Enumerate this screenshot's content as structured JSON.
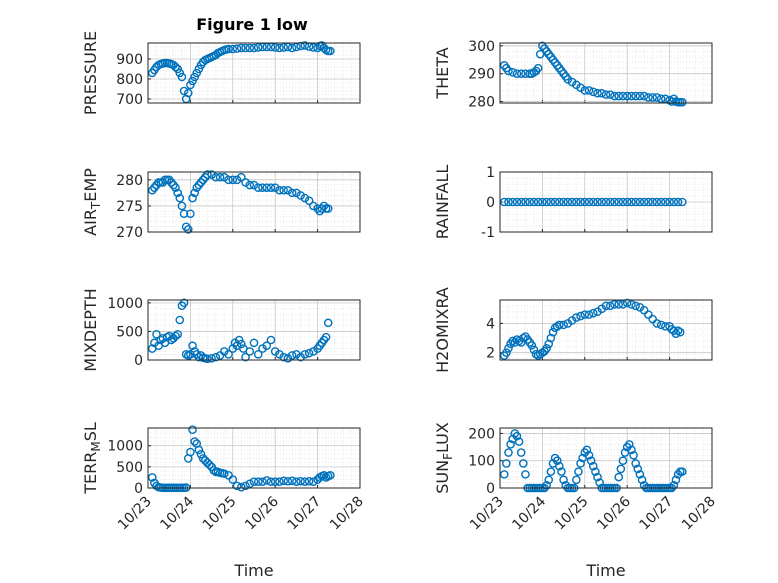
{
  "figure_title": "Figure 1 low",
  "colors": {
    "marker": "#0072BD",
    "axis": "#262626",
    "grid": "#c8c8c8",
    "minor_grid": "#e2e2e2",
    "background": "#ffffff"
  },
  "x_ticks": [
    "10/23",
    "10/24",
    "10/25",
    "10/26",
    "10/27",
    "10/28"
  ],
  "x_label": "Time",
  "chart_data": [
    {
      "type": "scatter",
      "ylabel": "PRESSURE",
      "title": "Figure 1 low",
      "xlim": [
        0,
        5
      ],
      "ylim": [
        680,
        980
      ],
      "yticks": [
        700,
        800,
        900
      ],
      "grid": "on",
      "x": [
        0.1,
        0.15,
        0.2,
        0.25,
        0.3,
        0.35,
        0.4,
        0.45,
        0.5,
        0.55,
        0.6,
        0.65,
        0.7,
        0.75,
        0.8,
        0.85,
        0.9,
        0.95,
        1.0,
        1.05,
        1.1,
        1.15,
        1.2,
        1.25,
        1.3,
        1.35,
        1.4,
        1.45,
        1.5,
        1.55,
        1.6,
        1.65,
        1.7,
        1.75,
        1.8,
        1.85,
        1.9,
        2.0,
        2.1,
        2.2,
        2.3,
        2.4,
        2.5,
        2.6,
        2.7,
        2.8,
        2.9,
        3.0,
        3.1,
        3.2,
        3.3,
        3.4,
        3.5,
        3.6,
        3.7,
        3.8,
        3.9,
        4.0,
        4.05,
        4.1,
        4.15,
        4.2,
        4.25,
        4.3
      ],
      "y": [
        830,
        845,
        860,
        870,
        875,
        878,
        880,
        880,
        878,
        875,
        870,
        860,
        850,
        830,
        810,
        740,
        700,
        730,
        770,
        790,
        810,
        830,
        850,
        870,
        885,
        895,
        900,
        905,
        910,
        915,
        920,
        930,
        935,
        940,
        945,
        948,
        950,
        950,
        952,
        955,
        955,
        955,
        955,
        958,
        960,
        960,
        960,
        958,
        955,
        958,
        960,
        955,
        960,
        965,
        968,
        962,
        958,
        955,
        965,
        968,
        955,
        945,
        940,
        940
      ]
    },
    {
      "type": "scatter",
      "ylabel": "THETA",
      "xlim": [
        0,
        5
      ],
      "ylim": [
        279.5,
        301
      ],
      "yticks": [
        280,
        290,
        300
      ],
      "grid": "on",
      "x": [
        0.1,
        0.15,
        0.2,
        0.3,
        0.4,
        0.5,
        0.6,
        0.7,
        0.75,
        0.8,
        0.85,
        0.9,
        0.95,
        1.0,
        1.05,
        1.1,
        1.15,
        1.2,
        1.25,
        1.3,
        1.35,
        1.4,
        1.45,
        1.5,
        1.55,
        1.6,
        1.7,
        1.8,
        1.9,
        2.0,
        2.1,
        2.2,
        2.3,
        2.4,
        2.5,
        2.6,
        2.7,
        2.8,
        2.9,
        3.0,
        3.1,
        3.2,
        3.3,
        3.4,
        3.5,
        3.6,
        3.7,
        3.8,
        3.9,
        4.0,
        4.05,
        4.1,
        4.15,
        4.2,
        4.25,
        4.3
      ],
      "y": [
        293,
        292,
        291,
        290.5,
        290,
        290,
        290,
        290,
        290,
        290.5,
        291,
        292,
        297,
        300,
        299,
        298,
        297,
        296,
        295,
        294,
        293,
        292,
        291,
        290,
        289,
        288,
        287,
        286,
        285,
        284,
        284,
        283.5,
        283,
        283,
        282.5,
        282.5,
        282,
        282,
        282,
        282,
        282,
        282,
        282,
        282,
        281.5,
        281.5,
        281.5,
        281,
        281,
        280.5,
        280,
        281,
        280,
        279.8,
        279.8,
        279.8
      ]
    },
    {
      "type": "scatter",
      "ylabel": "AIR_TEMP",
      "xlim": [
        0,
        5
      ],
      "ylim": [
        270,
        281.5
      ],
      "yticks": [
        270,
        275,
        280
      ],
      "grid": "on",
      "x": [
        0.1,
        0.15,
        0.2,
        0.25,
        0.3,
        0.35,
        0.4,
        0.45,
        0.5,
        0.55,
        0.6,
        0.65,
        0.7,
        0.75,
        0.8,
        0.85,
        0.9,
        0.95,
        1.0,
        1.05,
        1.1,
        1.15,
        1.2,
        1.25,
        1.3,
        1.35,
        1.4,
        1.5,
        1.6,
        1.7,
        1.8,
        1.9,
        2.0,
        2.1,
        2.2,
        2.3,
        2.4,
        2.5,
        2.6,
        2.7,
        2.8,
        2.9,
        3.0,
        3.1,
        3.2,
        3.3,
        3.4,
        3.5,
        3.6,
        3.7,
        3.8,
        3.9,
        4.0,
        4.05,
        4.1,
        4.15,
        4.2,
        4.25
      ],
      "y": [
        278,
        278.5,
        279,
        279.5,
        279.5,
        279.5,
        280,
        280,
        280,
        279.5,
        279,
        278.5,
        277.5,
        276.5,
        275,
        273.5,
        271,
        270.5,
        273.5,
        276.5,
        277.5,
        278.5,
        279,
        279.5,
        280,
        280.5,
        281,
        281,
        280.5,
        280.5,
        280.5,
        280,
        280,
        280,
        280.5,
        279.5,
        279,
        279,
        278.5,
        278.5,
        278.5,
        278.5,
        278.5,
        278,
        278,
        278,
        277.5,
        277.5,
        277,
        276.5,
        276,
        275,
        274.5,
        274,
        274.5,
        275,
        274.5,
        274.5
      ]
    },
    {
      "type": "scatter",
      "ylabel": "RAINFALL",
      "xlim": [
        0,
        5
      ],
      "ylim": [
        -1,
        1
      ],
      "yticks": [
        -1,
        0,
        1
      ],
      "grid": "on",
      "x": [
        0.1,
        0.2,
        0.3,
        0.4,
        0.5,
        0.6,
        0.7,
        0.8,
        0.9,
        1.0,
        1.1,
        1.2,
        1.3,
        1.4,
        1.5,
        1.6,
        1.7,
        1.8,
        1.9,
        2.0,
        2.1,
        2.2,
        2.3,
        2.4,
        2.5,
        2.6,
        2.7,
        2.8,
        2.9,
        3.0,
        3.1,
        3.2,
        3.3,
        3.4,
        3.5,
        3.6,
        3.7,
        3.8,
        3.9,
        4.0,
        4.1,
        4.2,
        4.3
      ],
      "y": [
        0,
        0,
        0,
        0,
        0,
        0,
        0,
        0,
        0,
        0,
        0,
        0,
        0,
        0,
        0,
        0,
        0,
        0,
        0,
        0,
        0,
        0,
        0,
        0,
        0,
        0,
        0,
        0,
        0,
        0,
        0,
        0,
        0,
        0,
        0,
        0,
        0,
        0,
        0,
        0,
        0,
        0,
        0
      ]
    },
    {
      "type": "scatter",
      "ylabel": "MIXDEPTH",
      "xlim": [
        0,
        5
      ],
      "ylim": [
        0,
        1050
      ],
      "yticks": [
        0,
        500,
        1000
      ],
      "grid": "on",
      "x": [
        0.1,
        0.15,
        0.2,
        0.25,
        0.3,
        0.35,
        0.4,
        0.45,
        0.5,
        0.55,
        0.6,
        0.65,
        0.7,
        0.75,
        0.8,
        0.85,
        0.9,
        0.95,
        1.0,
        1.05,
        1.1,
        1.15,
        1.2,
        1.25,
        1.3,
        1.35,
        1.4,
        1.5,
        1.6,
        1.7,
        1.8,
        1.9,
        2.0,
        2.05,
        2.1,
        2.15,
        2.2,
        2.25,
        2.3,
        2.4,
        2.5,
        2.6,
        2.7,
        2.8,
        2.9,
        3.0,
        3.1,
        3.2,
        3.3,
        3.4,
        3.5,
        3.6,
        3.7,
        3.8,
        3.9,
        4.0,
        4.05,
        4.1,
        4.15,
        4.2,
        4.25
      ],
      "y": [
        200,
        300,
        450,
        250,
        350,
        380,
        300,
        400,
        420,
        350,
        380,
        420,
        450,
        700,
        950,
        1000,
        100,
        80,
        100,
        250,
        150,
        100,
        50,
        80,
        40,
        30,
        20,
        30,
        50,
        80,
        150,
        100,
        200,
        300,
        250,
        350,
        280,
        200,
        50,
        150,
        300,
        100,
        200,
        250,
        350,
        150,
        100,
        50,
        30,
        80,
        100,
        50,
        100,
        120,
        150,
        200,
        250,
        300,
        350,
        400,
        650
      ]
    },
    {
      "type": "scatter",
      "ylabel": "H2OMIXRA",
      "xlim": [
        0,
        5
      ],
      "ylim": [
        1.5,
        5.6
      ],
      "yticks": [
        2,
        4
      ],
      "grid": "on",
      "x": [
        0.1,
        0.15,
        0.2,
        0.25,
        0.3,
        0.35,
        0.4,
        0.45,
        0.5,
        0.55,
        0.6,
        0.65,
        0.7,
        0.75,
        0.8,
        0.85,
        0.9,
        0.95,
        1.0,
        1.05,
        1.1,
        1.15,
        1.2,
        1.25,
        1.3,
        1.35,
        1.4,
        1.5,
        1.6,
        1.7,
        1.8,
        1.9,
        2.0,
        2.1,
        2.2,
        2.3,
        2.4,
        2.5,
        2.6,
        2.7,
        2.8,
        2.9,
        3.0,
        3.1,
        3.2,
        3.3,
        3.4,
        3.5,
        3.6,
        3.7,
        3.8,
        3.9,
        4.0,
        4.05,
        4.1,
        4.15,
        4.2,
        4.25
      ],
      "y": [
        1.8,
        2.0,
        2.3,
        2.6,
        2.8,
        2.7,
        2.9,
        2.8,
        2.7,
        3.0,
        3.1,
        2.9,
        2.7,
        2.5,
        2.2,
        1.9,
        1.8,
        1.9,
        2.0,
        2.1,
        2.3,
        2.6,
        3.0,
        3.4,
        3.7,
        3.8,
        3.9,
        3.9,
        4.0,
        4.2,
        4.4,
        4.5,
        4.6,
        4.6,
        4.7,
        4.8,
        5.0,
        5.2,
        5.2,
        5.3,
        5.3,
        5.3,
        5.4,
        5.3,
        5.2,
        5.1,
        4.9,
        4.6,
        4.3,
        4.0,
        3.9,
        3.8,
        3.8,
        3.6,
        3.5,
        3.3,
        3.5,
        3.4
      ]
    },
    {
      "type": "scatter",
      "ylabel": "TERR_MSL",
      "xlim": [
        0,
        5
      ],
      "ylim": [
        0,
        1420
      ],
      "yticks": [
        0,
        500,
        1000
      ],
      "grid": "on",
      "x": [
        0.1,
        0.15,
        0.2,
        0.25,
        0.3,
        0.35,
        0.4,
        0.45,
        0.5,
        0.55,
        0.6,
        0.65,
        0.7,
        0.75,
        0.8,
        0.85,
        0.9,
        0.95,
        1.0,
        1.05,
        1.1,
        1.15,
        1.2,
        1.25,
        1.3,
        1.35,
        1.4,
        1.45,
        1.5,
        1.55,
        1.6,
        1.65,
        1.7,
        1.75,
        1.8,
        1.9,
        2.0,
        2.1,
        2.2,
        2.3,
        2.4,
        2.5,
        2.6,
        2.7,
        2.8,
        2.9,
        3.0,
        3.1,
        3.2,
        3.3,
        3.4,
        3.5,
        3.6,
        3.7,
        3.8,
        3.9,
        4.0,
        4.05,
        4.1,
        4.15,
        4.2,
        4.25,
        4.3
      ],
      "y": [
        250,
        120,
        50,
        20,
        10,
        5,
        5,
        5,
        5,
        5,
        5,
        5,
        5,
        5,
        5,
        5,
        10,
        700,
        850,
        1380,
        1100,
        1050,
        900,
        800,
        700,
        650,
        600,
        550,
        500,
        420,
        380,
        380,
        360,
        350,
        340,
        300,
        200,
        50,
        20,
        50,
        100,
        150,
        150,
        150,
        180,
        150,
        150,
        150,
        170,
        160,
        170,
        150,
        160,
        150,
        160,
        150,
        200,
        250,
        280,
        300,
        250,
        280,
        300
      ]
    },
    {
      "type": "scatter",
      "ylabel": "SUN_FLUX",
      "xlim": [
        0,
        5
      ],
      "ylim": [
        0,
        220
      ],
      "yticks": [
        0,
        100,
        200
      ],
      "grid": "on",
      "x": [
        0.1,
        0.15,
        0.2,
        0.25,
        0.3,
        0.35,
        0.4,
        0.45,
        0.5,
        0.55,
        0.6,
        0.65,
        0.7,
        0.75,
        0.8,
        0.85,
        0.9,
        0.95,
        1.0,
        1.05,
        1.1,
        1.15,
        1.2,
        1.25,
        1.3,
        1.35,
        1.4,
        1.45,
        1.5,
        1.55,
        1.6,
        1.65,
        1.7,
        1.75,
        1.8,
        1.85,
        1.9,
        1.95,
        2.0,
        2.05,
        2.1,
        2.15,
        2.2,
        2.25,
        2.3,
        2.35,
        2.4,
        2.45,
        2.5,
        2.55,
        2.6,
        2.65,
        2.7,
        2.75,
        2.8,
        2.85,
        2.9,
        2.95,
        3.0,
        3.05,
        3.1,
        3.15,
        3.2,
        3.25,
        3.3,
        3.35,
        3.4,
        3.45,
        3.5,
        3.55,
        3.6,
        3.65,
        3.7,
        3.75,
        3.8,
        3.85,
        3.9,
        3.95,
        4.0,
        4.05,
        4.1,
        4.15,
        4.2,
        4.25,
        4.3
      ],
      "y": [
        50,
        90,
        130,
        160,
        180,
        200,
        190,
        170,
        130,
        90,
        50,
        0,
        0,
        0,
        0,
        0,
        0,
        0,
        0,
        0,
        10,
        30,
        60,
        90,
        110,
        100,
        80,
        60,
        30,
        10,
        0,
        0,
        0,
        0,
        30,
        60,
        90,
        110,
        130,
        140,
        120,
        100,
        80,
        60,
        40,
        20,
        0,
        0,
        0,
        0,
        0,
        0,
        0,
        0,
        40,
        70,
        100,
        130,
        150,
        160,
        140,
        120,
        90,
        70,
        50,
        30,
        10,
        0,
        0,
        0,
        0,
        0,
        0,
        0,
        0,
        0,
        0,
        0,
        0,
        0,
        10,
        30,
        50,
        60,
        60
      ]
    }
  ]
}
